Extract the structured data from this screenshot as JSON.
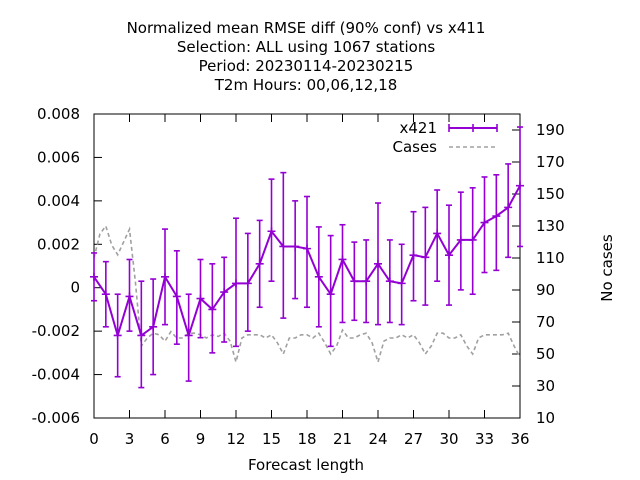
{
  "chart_data": {
    "type": "line",
    "title_lines": [
      "Normalized mean RMSE diff (90% conf) vs x411",
      "Selection: ALL using  1067 stations",
      "Period: 20230114-20230215",
      "T2m   Hours:  00,06,12,18"
    ],
    "xlabel": "Forecast length",
    "ylabel": "",
    "y2label": "No cases",
    "xlim": [
      0,
      36
    ],
    "ylim": [
      -0.006,
      0.008
    ],
    "y2lim": [
      10,
      200
    ],
    "xticks": [
      0,
      3,
      6,
      9,
      12,
      15,
      18,
      21,
      24,
      27,
      30,
      33,
      36
    ],
    "yticks": [
      -0.006,
      -0.004,
      -0.002,
      0,
      0.002,
      0.004,
      0.006,
      0.008
    ],
    "ytick_labels": [
      "-0.006",
      "-0.004",
      "-0.002",
      "0",
      "0.002",
      "0.004",
      "0.006",
      "0.008"
    ],
    "y2ticks": [
      10,
      30,
      50,
      70,
      90,
      110,
      130,
      150,
      170,
      190
    ],
    "legend_position": "top-right",
    "colors": {
      "x421": "#9400d3",
      "cases": "#a0a0a0"
    },
    "series": [
      {
        "name": "x421",
        "axis": "left",
        "style": "line-errorbars",
        "x": [
          0,
          1,
          2,
          3,
          4,
          5,
          6,
          7,
          8,
          9,
          10,
          11,
          12,
          13,
          14,
          15,
          16,
          17,
          18,
          19,
          20,
          21,
          22,
          23,
          24,
          25,
          26,
          27,
          28,
          29,
          30,
          31,
          32,
          33,
          34,
          35,
          36
        ],
        "values": [
          0.0005,
          -0.0003,
          -0.0022,
          -0.0004,
          -0.0022,
          -0.0018,
          0.0005,
          -0.0004,
          -0.0022,
          -0.0005,
          -0.001,
          -0.0002,
          0.0002,
          0.0002,
          0.0011,
          0.0026,
          0.0019,
          0.0019,
          0.0018,
          0.0005,
          -0.0003,
          0.0013,
          0.0003,
          0.0003,
          0.0011,
          0.0003,
          0.0002,
          0.0015,
          0.0014,
          0.0025,
          0.0015,
          0.0022,
          0.0022,
          0.003,
          0.0033,
          0.0037,
          0.0047
        ],
        "lower": [
          -0.0006,
          -0.0018,
          -0.0041,
          -0.002,
          -0.0046,
          -0.004,
          -0.0017,
          -0.0026,
          -0.0043,
          -0.0023,
          -0.003,
          -0.0025,
          -0.0027,
          -0.002,
          -0.0009,
          0.0003,
          -0.0014,
          -0.0005,
          -0.0009,
          -0.0018,
          -0.0027,
          -0.0016,
          -0.0015,
          -0.0016,
          -0.0017,
          -0.0016,
          -0.0017,
          -0.0006,
          -0.0008,
          0.0003,
          -0.0008,
          -0.0001,
          -0.0003,
          0.0007,
          0.0008,
          0.0014,
          0.0019
        ],
        "upper": [
          0.0016,
          0.0012,
          -0.0003,
          0.0013,
          0.0003,
          0.0004,
          0.0027,
          0.0017,
          -0.0003,
          0.0013,
          0.0011,
          0.0014,
          0.0032,
          0.0025,
          0.0031,
          0.005,
          0.0053,
          0.004,
          0.0042,
          0.0028,
          0.0024,
          0.0029,
          0.0021,
          0.0022,
          0.0039,
          0.0022,
          0.002,
          0.0035,
          0.0037,
          0.0045,
          0.0038,
          0.0044,
          0.0046,
          0.0051,
          0.0052,
          0.0057,
          0.0074
        ]
      },
      {
        "name": "Cases",
        "axis": "right",
        "style": "dashed",
        "x": [
          0,
          0.5,
          1,
          1.5,
          2,
          2.5,
          3,
          3.5,
          4,
          4.5,
          5,
          5.5,
          6,
          6.5,
          7,
          7.5,
          8,
          8.5,
          9,
          9.5,
          10,
          10.5,
          11,
          11.5,
          12,
          12.5,
          13,
          13.5,
          14,
          14.5,
          15,
          15.5,
          16,
          16.5,
          17,
          17.5,
          18,
          18.5,
          19,
          19.5,
          20,
          20.5,
          21,
          21.5,
          22,
          22.5,
          23,
          23.5,
          24,
          24.5,
          25,
          25.5,
          26,
          26.5,
          27,
          27.5,
          28,
          28.5,
          29,
          29.5,
          30,
          30.5,
          31,
          31.5,
          32,
          32.5,
          33,
          33.5,
          34,
          34.5,
          35,
          35.5,
          36
        ],
        "values": [
          110,
          125,
          130,
          118,
          112,
          120,
          128,
          95,
          55,
          60,
          63,
          62,
          58,
          64,
          60,
          60,
          63,
          63,
          62,
          60,
          62,
          61,
          63,
          58,
          45,
          60,
          62,
          62,
          62,
          60,
          62,
          57,
          50,
          60,
          60,
          62,
          62,
          60,
          63,
          57,
          50,
          55,
          65,
          60,
          60,
          62,
          63,
          57,
          45,
          58,
          60,
          60,
          62,
          60,
          62,
          57,
          50,
          55,
          63,
          63,
          60,
          60,
          62,
          55,
          50,
          60,
          62,
          62,
          62,
          62,
          63,
          55,
          48
        ]
      }
    ]
  }
}
